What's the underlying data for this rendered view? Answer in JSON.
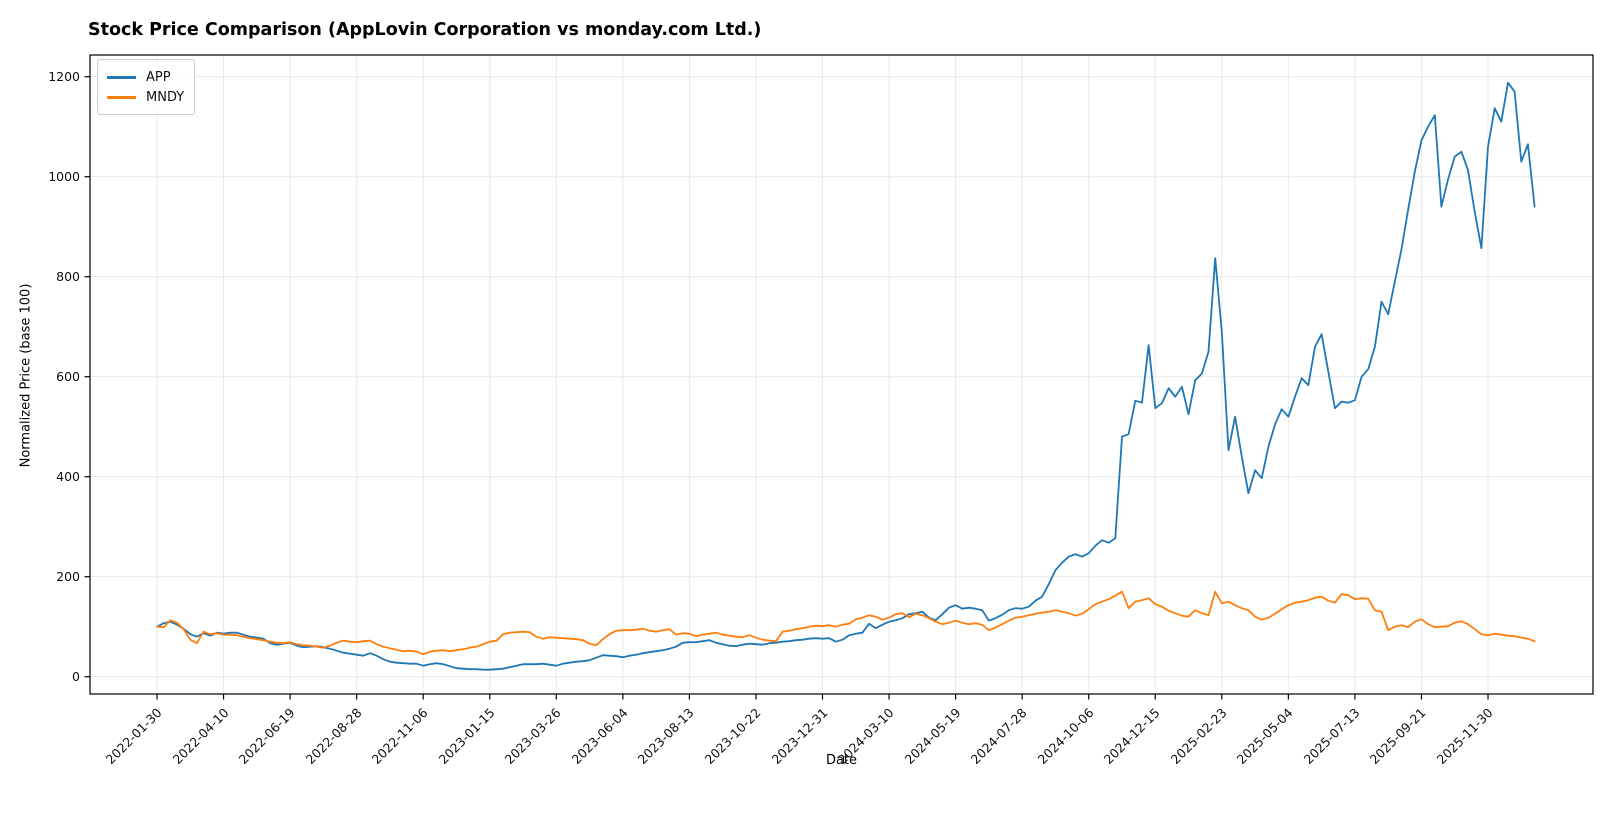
{
  "figure": {
    "title": "Stock Price Comparison (AppLovin Corporation vs monday.com Ltd.)",
    "xlabel": "Date",
    "ylabel": "Normalized Price (base 100)"
  },
  "legend": {
    "position": "upper left",
    "items": [
      {
        "label": "APP",
        "color": "#1f77b4"
      },
      {
        "label": "MNDY",
        "color": "#ff7f0e"
      }
    ]
  },
  "chart_data": {
    "type": "line",
    "title": "Stock Price Comparison (AppLovin Corporation vs monday.com Ltd.)",
    "xlabel": "Date",
    "ylabel": "Normalized Price (base 100)",
    "x_start_date": "2022-01-30",
    "x_interval": "weekly",
    "x_tick_week_indices": [
      0,
      10,
      20,
      30,
      40,
      50,
      60,
      70,
      80,
      90,
      100,
      110,
      120,
      130,
      140,
      150,
      160,
      170,
      180,
      190,
      200
    ],
    "x_tick_labels": [
      "2022-01-30",
      "2022-04-10",
      "2022-06-19",
      "2022-08-28",
      "2022-11-06",
      "2023-01-15",
      "2023-03-26",
      "2023-06-04",
      "2023-08-13",
      "2023-10-22",
      "2023-12-31",
      "2024-03-10",
      "2024-05-19",
      "2024-07-28",
      "2024-10-06",
      "2024-12-15",
      "2025-02-23",
      "2025-05-04",
      "2025-07-13",
      "2025-09-21",
      "2025-11-30"
    ],
    "y_ticks": [
      0,
      200,
      400,
      600,
      800,
      1000,
      1200
    ],
    "ylim": [
      -45,
      1247
    ],
    "grid": true,
    "grid_color": "#e9e9e9",
    "legend_position": "upper left",
    "series": [
      {
        "name": "APP",
        "color": "#1f77b4",
        "values": [
          100,
          107,
          110,
          104,
          96,
          85,
          80,
          87,
          82,
          88,
          86,
          88,
          88,
          84,
          80,
          78,
          76,
          67,
          64,
          66,
          68,
          62,
          59,
          60,
          61,
          59,
          56,
          52,
          48,
          46,
          44,
          42,
          47,
          42,
          35,
          30,
          28,
          27,
          26,
          26,
          22,
          25,
          27,
          25,
          21,
          17,
          16,
          15,
          15,
          14,
          14,
          15,
          16,
          19,
          22,
          25,
          25,
          25,
          26,
          24,
          22,
          26,
          28,
          30,
          31,
          33,
          38,
          43,
          42,
          41,
          39,
          42,
          44,
          47,
          49,
          51,
          53,
          56,
          60,
          68,
          69,
          69,
          71,
          73,
          68,
          65,
          62,
          61,
          64,
          66,
          65,
          64,
          67,
          68,
          70,
          71,
          73,
          74,
          76,
          77,
          76,
          77,
          70,
          74,
          83,
          86,
          88,
          106,
          97,
          104,
          110,
          113,
          117,
          125,
          127,
          130,
          118,
          113,
          125,
          138,
          143,
          136,
          138,
          136,
          133,
          112,
          117,
          124,
          133,
          137,
          136,
          140,
          152,
          160,
          185,
          213,
          228,
          240,
          245,
          240,
          247,
          262,
          273,
          268,
          277,
          480,
          485,
          552,
          548,
          663,
          537,
          547,
          577,
          560,
          580,
          525,
          593,
          606,
          650,
          837,
          690,
          453,
          520,
          440,
          367,
          413,
          397,
          460,
          505,
          535,
          520,
          560,
          597,
          583,
          660,
          685,
          610,
          537,
          550,
          548,
          553,
          600,
          615,
          660,
          750,
          725,
          790,
          855,
          935,
          1010,
          1073,
          1100,
          1123,
          940,
          995,
          1040,
          1050,
          1013,
          930,
          857,
          1060,
          1137,
          1110,
          1188,
          1170,
          1030,
          1065,
          940
        ]
      },
      {
        "name": "MNDY",
        "color": "#ff7f0e",
        "values": [
          100,
          99,
          113,
          108,
          95,
          74,
          67,
          90,
          85,
          87,
          84,
          84,
          83,
          80,
          77,
          75,
          73,
          70,
          68,
          67,
          69,
          65,
          63,
          62,
          60,
          58,
          62,
          68,
          72,
          70,
          69,
          71,
          72,
          65,
          60,
          57,
          54,
          51,
          52,
          50,
          45,
          50,
          52,
          53,
          51,
          53,
          55,
          58,
          60,
          65,
          70,
          72,
          85,
          88,
          89,
          90,
          89,
          80,
          76,
          79,
          78,
          77,
          76,
          75,
          73,
          66,
          63,
          75,
          85,
          92,
          93,
          93,
          94,
          96,
          92,
          90,
          93,
          95,
          84,
          87,
          86,
          81,
          84,
          86,
          88,
          84,
          82,
          80,
          79,
          83,
          78,
          74,
          72,
          71,
          90,
          92,
          95,
          97,
          100,
          102,
          101,
          103,
          100,
          104,
          106,
          115,
          118,
          123,
          120,
          114,
          118,
          125,
          127,
          119,
          126,
          123,
          117,
          110,
          105,
          108,
          112,
          108,
          105,
          107,
          104,
          93,
          98,
          105,
          112,
          118,
          120,
          123,
          126,
          128,
          130,
          133,
          130,
          127,
          122,
          126,
          135,
          145,
          150,
          155,
          162,
          170,
          137,
          150,
          153,
          157,
          145,
          140,
          132,
          127,
          122,
          120,
          133,
          127,
          123,
          170,
          147,
          150,
          143,
          137,
          133,
          120,
          114,
          118,
          126,
          135,
          143,
          148,
          150,
          153,
          158,
          160,
          152,
          148,
          165,
          163,
          155,
          157,
          156,
          133,
          130,
          93,
          100,
          103,
          99,
          110,
          115,
          105,
          99,
          100,
          101,
          108,
          111,
          105,
          95,
          85,
          83,
          86,
          84,
          82,
          81,
          78,
          76,
          71
        ]
      }
    ]
  }
}
